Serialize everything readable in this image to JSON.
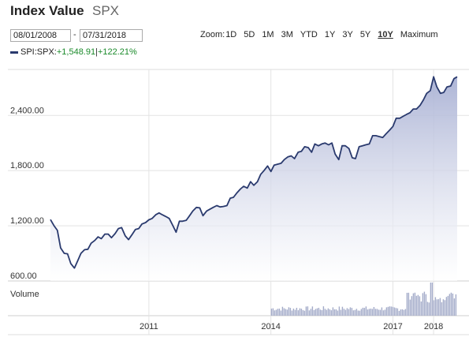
{
  "header": {
    "title": "Index Value",
    "symbol": "SPX"
  },
  "range": {
    "start": "08/01/2008",
    "separator": "-",
    "end": "07/31/2018"
  },
  "zoom": {
    "label": "Zoom:",
    "options": [
      "1D",
      "5D",
      "1M",
      "3M",
      "YTD",
      "1Y",
      "3Y",
      "5Y",
      "10Y",
      "Maximum"
    ],
    "active": "10Y"
  },
  "legend": {
    "name": "SPI:SPX:",
    "change": "+1,548.91",
    "separator": "|",
    "pct": "+122.21%"
  },
  "colors": {
    "line": "#2a3a6e",
    "fill_top": "#a9b1d4",
    "fill_bottom": "#ffffff",
    "volume": "#a3abc9",
    "grid": "#e3e3e3"
  },
  "chart_data": {
    "type": "area",
    "series": [
      {
        "x": [
          2008.58,
          2008.67,
          2008.75,
          2008.83,
          2008.92,
          2009.0,
          2009.08,
          2009.17,
          2009.25,
          2009.33,
          2009.42,
          2009.5,
          2009.58,
          2009.67,
          2009.75,
          2009.83,
          2009.92,
          2010.0,
          2010.08,
          2010.17,
          2010.25,
          2010.33,
          2010.42,
          2010.5,
          2010.58,
          2010.67,
          2010.75,
          2010.83,
          2010.92,
          2011.0,
          2011.08,
          2011.17,
          2011.25,
          2011.33,
          2011.42,
          2011.5,
          2011.58,
          2011.67,
          2011.75,
          2011.83,
          2011.92,
          2012.0,
          2012.08,
          2012.17,
          2012.25,
          2012.33,
          2012.42,
          2012.5,
          2012.58,
          2012.67,
          2012.75,
          2012.83,
          2012.92,
          2013.0,
          2013.08,
          2013.17,
          2013.25,
          2013.33,
          2013.42,
          2013.5,
          2013.58,
          2013.67,
          2013.75,
          2013.83,
          2013.92,
          2014.0,
          2014.08,
          2014.17,
          2014.25,
          2014.33,
          2014.42,
          2014.5,
          2014.58,
          2014.67,
          2014.75,
          2014.83,
          2014.92,
          2015.0,
          2015.08,
          2015.17,
          2015.25,
          2015.33,
          2015.42,
          2015.5,
          2015.58,
          2015.67,
          2015.75,
          2015.83,
          2015.92,
          2016.0,
          2016.08,
          2016.17,
          2016.25,
          2016.33,
          2016.42,
          2016.5,
          2016.58,
          2016.67,
          2016.75,
          2016.83,
          2016.92,
          2017.0,
          2017.08,
          2017.17,
          2017.25,
          2017.33,
          2017.42,
          2017.5,
          2017.58,
          2017.67,
          2017.75,
          2017.83,
          2017.92,
          2018.0,
          2018.08,
          2018.17,
          2018.25,
          2018.33,
          2018.42,
          2018.5,
          2018.58
        ],
        "values": [
          1268,
          1200,
          1150,
          960,
          900,
          895,
          790,
          740,
          820,
          900,
          940,
          945,
          1010,
          1040,
          1080,
          1060,
          1110,
          1110,
          1070,
          1115,
          1170,
          1180,
          1090,
          1050,
          1100,
          1160,
          1170,
          1220,
          1235,
          1265,
          1280,
          1320,
          1340,
          1320,
          1300,
          1280,
          1210,
          1130,
          1250,
          1250,
          1260,
          1310,
          1360,
          1400,
          1395,
          1310,
          1360,
          1380,
          1400,
          1420,
          1405,
          1410,
          1420,
          1500,
          1510,
          1560,
          1600,
          1630,
          1610,
          1680,
          1640,
          1680,
          1760,
          1800,
          1850,
          1790,
          1860,
          1870,
          1880,
          1920,
          1950,
          1960,
          1930,
          2000,
          2010,
          2060,
          2050,
          2000,
          2090,
          2070,
          2090,
          2100,
          2080,
          2100,
          1980,
          1920,
          2070,
          2070,
          2040,
          1940,
          1930,
          2060,
          2070,
          2080,
          2090,
          2180,
          2180,
          2170,
          2160,
          2200,
          2240,
          2280,
          2370,
          2370,
          2390,
          2410,
          2430,
          2470,
          2470,
          2510,
          2570,
          2640,
          2670,
          2820,
          2710,
          2640,
          2650,
          2710,
          2720,
          2800,
          2820
        ]
      }
    ],
    "y_ticks": [
      600,
      1200,
      1800,
      2400
    ],
    "y_tick_labels": [
      "600.00",
      "1,200.00",
      "1,800.00",
      "2,400.00"
    ],
    "x_ticks": [
      2011,
      2014,
      2017,
      2018
    ],
    "x_tick_labels": [
      "2011",
      "2014",
      "2017",
      "2018"
    ],
    "xlim": [
      2008.58,
      2018.58
    ],
    "ylim": [
      600,
      2900
    ],
    "volume_label": "Volume",
    "volume_start": 2014.0,
    "grid": true,
    "legend": "top-left"
  }
}
